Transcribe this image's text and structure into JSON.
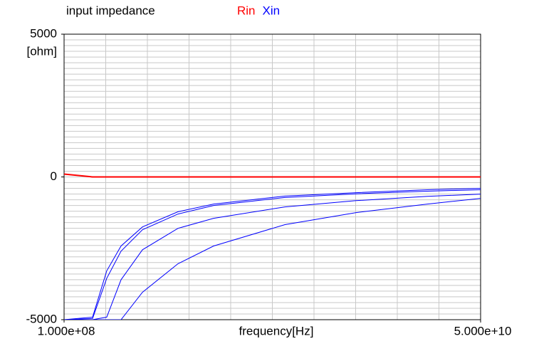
{
  "chart_data": {
    "type": "line",
    "title": "input impedance",
    "xlabel": "frequency[Hz]",
    "ylabel": "[ohm]",
    "xscale": "log",
    "x": [
      100000000,
      153000000,
      189000000,
      234000000,
      322000000,
      547000000,
      931000000,
      2700000000,
      7800000000,
      22600000000,
      50000000000
    ],
    "xlim": [
      100000000,
      50000000000
    ],
    "xticks": [
      {
        "value": 100000000,
        "label": "1.000e+08"
      },
      {
        "value": 50000000000,
        "label": "5.000e+10"
      }
    ],
    "ylim": [
      -5000,
      5000
    ],
    "yticks": [
      5000,
      0,
      -5000
    ],
    "grid": true,
    "series": [
      {
        "name": "Rin",
        "color": "#ff0000",
        "values": [
          [
            100,
            0,
            0,
            0,
            0,
            0,
            0,
            0,
            0,
            0,
            0
          ]
        ]
      },
      {
        "name": "Xin",
        "color": "#0000ff",
        "values": [
          [
            -5000,
            -4910,
            -3290,
            -2420,
            -1750,
            -1220,
            -950,
            -670,
            -550,
            -450,
            -400
          ],
          [
            -5000,
            -4960,
            -3550,
            -2600,
            -1850,
            -1300,
            -1000,
            -720,
            -590,
            -500,
            -450
          ],
          [
            -5000,
            -5000,
            -4910,
            -3600,
            -2550,
            -1800,
            -1450,
            -1050,
            -830,
            -680,
            -600
          ],
          [
            -5000,
            -5000,
            -5000,
            -5000,
            -4040,
            -3040,
            -2420,
            -1670,
            -1250,
            -950,
            -750
          ]
        ]
      }
    ]
  }
}
